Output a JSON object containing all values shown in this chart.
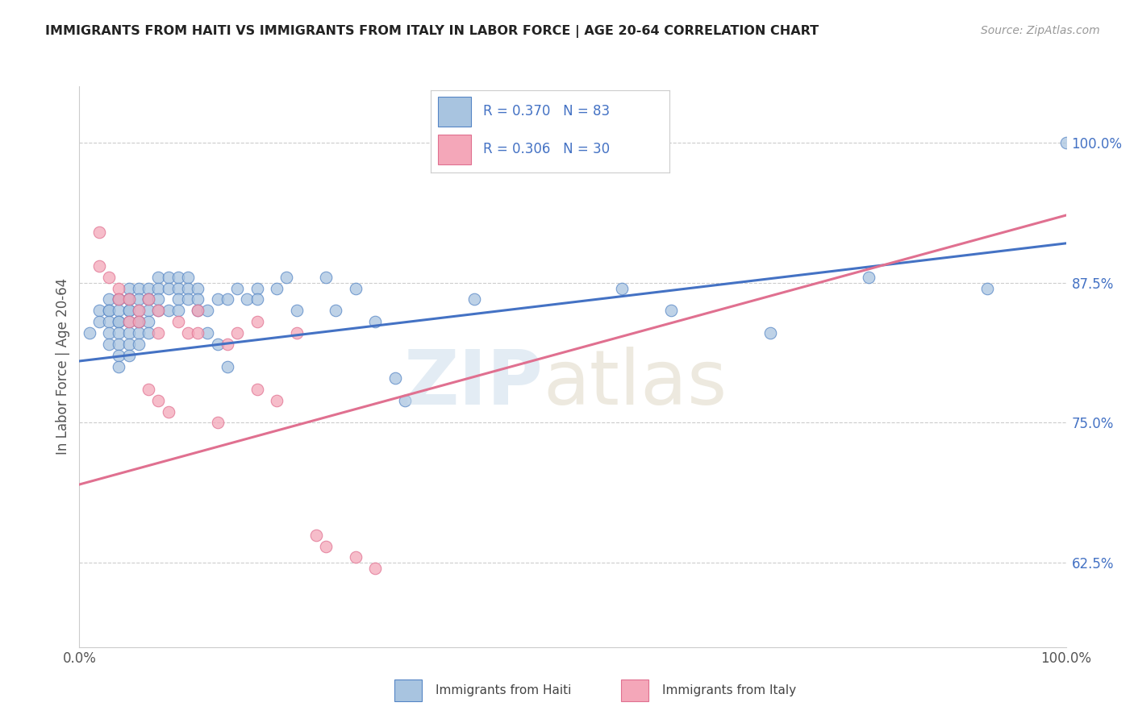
{
  "title": "IMMIGRANTS FROM HAITI VS IMMIGRANTS FROM ITALY IN LABOR FORCE | AGE 20-64 CORRELATION CHART",
  "source_text": "Source: ZipAtlas.com",
  "ylabel": "In Labor Force | Age 20-64",
  "xlim": [
    0.0,
    1.0
  ],
  "ylim": [
    0.55,
    1.05
  ],
  "xtick_positions": [
    0.0,
    1.0
  ],
  "xtick_labels": [
    "0.0%",
    "100.0%"
  ],
  "ytick_vals_right": [
    1.0,
    0.875,
    0.75,
    0.625
  ],
  "ytick_labels_right": [
    "100.0%",
    "87.5%",
    "75.0%",
    "62.5%"
  ],
  "haiti_color": "#a8c4e0",
  "italy_color": "#f4a7b9",
  "haiti_edge_color": "#5585c5",
  "italy_edge_color": "#e07090",
  "trendline_haiti_color": "#4472c4",
  "trendline_italy_color": "#e07090",
  "haiti_x": [
    0.01,
    0.02,
    0.02,
    0.03,
    0.03,
    0.03,
    0.03,
    0.03,
    0.03,
    0.04,
    0.04,
    0.04,
    0.04,
    0.04,
    0.04,
    0.04,
    0.04,
    0.04,
    0.05,
    0.05,
    0.05,
    0.05,
    0.05,
    0.05,
    0.05,
    0.05,
    0.05,
    0.06,
    0.06,
    0.06,
    0.06,
    0.06,
    0.06,
    0.06,
    0.07,
    0.07,
    0.07,
    0.07,
    0.07,
    0.07,
    0.08,
    0.08,
    0.08,
    0.08,
    0.09,
    0.09,
    0.09,
    0.1,
    0.1,
    0.1,
    0.1,
    0.11,
    0.11,
    0.11,
    0.12,
    0.12,
    0.12,
    0.13,
    0.13,
    0.14,
    0.14,
    0.15,
    0.15,
    0.16,
    0.17,
    0.18,
    0.18,
    0.2,
    0.21,
    0.22,
    0.25,
    0.26,
    0.28,
    0.3,
    0.32,
    0.33,
    0.4,
    0.55,
    0.6,
    0.7,
    0.8,
    0.92,
    1.0
  ],
  "haiti_y": [
    0.83,
    0.85,
    0.84,
    0.86,
    0.85,
    0.85,
    0.84,
    0.83,
    0.82,
    0.86,
    0.86,
    0.85,
    0.84,
    0.84,
    0.83,
    0.82,
    0.81,
    0.8,
    0.87,
    0.86,
    0.86,
    0.85,
    0.85,
    0.84,
    0.83,
    0.82,
    0.81,
    0.87,
    0.86,
    0.85,
    0.84,
    0.84,
    0.83,
    0.82,
    0.87,
    0.86,
    0.86,
    0.85,
    0.84,
    0.83,
    0.88,
    0.87,
    0.86,
    0.85,
    0.88,
    0.87,
    0.85,
    0.88,
    0.87,
    0.86,
    0.85,
    0.88,
    0.87,
    0.86,
    0.87,
    0.86,
    0.85,
    0.85,
    0.83,
    0.86,
    0.82,
    0.86,
    0.8,
    0.87,
    0.86,
    0.87,
    0.86,
    0.87,
    0.88,
    0.85,
    0.88,
    0.85,
    0.87,
    0.84,
    0.79,
    0.77,
    0.86,
    0.87,
    0.85,
    0.83,
    0.88,
    0.87,
    1.0
  ],
  "italy_x": [
    0.02,
    0.02,
    0.03,
    0.04,
    0.04,
    0.05,
    0.05,
    0.06,
    0.06,
    0.07,
    0.07,
    0.08,
    0.08,
    0.08,
    0.09,
    0.1,
    0.11,
    0.12,
    0.12,
    0.14,
    0.15,
    0.16,
    0.18,
    0.18,
    0.2,
    0.22,
    0.24,
    0.25,
    0.28,
    0.3
  ],
  "italy_y": [
    0.92,
    0.89,
    0.88,
    0.87,
    0.86,
    0.86,
    0.84,
    0.85,
    0.84,
    0.86,
    0.78,
    0.85,
    0.83,
    0.77,
    0.76,
    0.84,
    0.83,
    0.85,
    0.83,
    0.75,
    0.82,
    0.83,
    0.84,
    0.78,
    0.77,
    0.83,
    0.65,
    0.64,
    0.63,
    0.62
  ]
}
